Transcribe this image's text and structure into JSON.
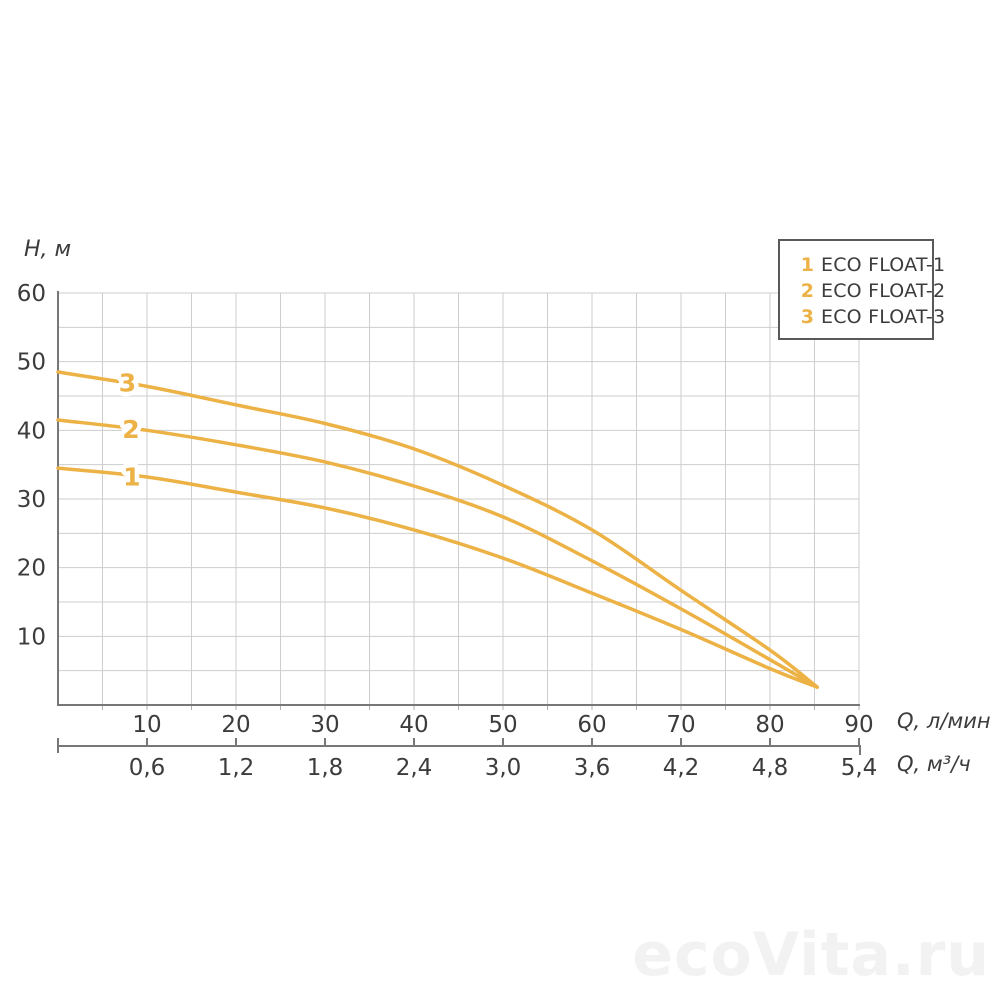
{
  "watermark": {
    "text": "ecoVita.ru"
  },
  "chart_data": {
    "type": "line",
    "title": "",
    "y_axis": {
      "label": "H, м",
      "min": 0,
      "max": 60,
      "tick_step": 10,
      "grid_step": 5,
      "tick_labels": [
        "10",
        "20",
        "30",
        "40",
        "50",
        "60"
      ]
    },
    "x_primary": {
      "label": "Q, л/мин",
      "min": 0,
      "max": 90,
      "tick_step": 10,
      "grid_step": 5,
      "tick_labels": [
        "10",
        "20",
        "30",
        "40",
        "50",
        "60",
        "70",
        "80",
        "90"
      ]
    },
    "x_secondary": {
      "label": "Q, м³/ч",
      "tick_labels": [
        "0,6",
        "1,2",
        "1,8",
        "2,4",
        "3,0",
        "3,6",
        "4,2",
        "4,8",
        "5,4"
      ]
    },
    "grid": true,
    "legend_position": "top-right",
    "legend": [
      {
        "num": "1",
        "label": "ECO FLOAT-1"
      },
      {
        "num": "2",
        "label": "ECO FLOAT-2"
      },
      {
        "num": "3",
        "label": "ECO FLOAT-3"
      }
    ],
    "series": [
      {
        "name": "ECO FLOAT-1",
        "curve_label": "1",
        "label_pos": [
          8.3,
          33.3
        ],
        "points": [
          [
            0,
            34.5
          ],
          [
            10,
            33.2
          ],
          [
            20,
            31.0
          ],
          [
            30,
            28.7
          ],
          [
            40,
            25.5
          ],
          [
            50,
            21.4
          ],
          [
            60,
            16.3
          ],
          [
            70,
            11.0
          ],
          [
            80,
            5.3
          ],
          [
            85.3,
            2.6
          ]
        ]
      },
      {
        "name": "ECO FLOAT-2",
        "curve_label": "2",
        "label_pos": [
          8.2,
          40.2
        ],
        "points": [
          [
            0,
            41.5
          ],
          [
            10,
            40.0
          ],
          [
            20,
            37.9
          ],
          [
            30,
            35.4
          ],
          [
            40,
            31.9
          ],
          [
            50,
            27.4
          ],
          [
            60,
            21.0
          ],
          [
            70,
            14.0
          ],
          [
            80,
            6.6
          ],
          [
            85.3,
            2.6
          ]
        ]
      },
      {
        "name": "ECO FLOAT-3",
        "curve_label": "3",
        "label_pos": [
          7.8,
          47.0
        ],
        "points": [
          [
            0,
            48.5
          ],
          [
            10,
            46.4
          ],
          [
            20,
            43.7
          ],
          [
            30,
            41.0
          ],
          [
            40,
            37.3
          ],
          [
            50,
            32.0
          ],
          [
            60,
            25.5
          ],
          [
            70,
            16.7
          ],
          [
            80,
            8.0
          ],
          [
            85.3,
            2.6
          ]
        ]
      }
    ],
    "colors": {
      "curve": "#EDB245",
      "grid": "#CDCDCD",
      "minor_tick": "#B0B0B0",
      "axis": "#77777A",
      "text": "#3C3C3E",
      "legend_border": "#59595B",
      "watermark": "#F2F2F2"
    }
  }
}
